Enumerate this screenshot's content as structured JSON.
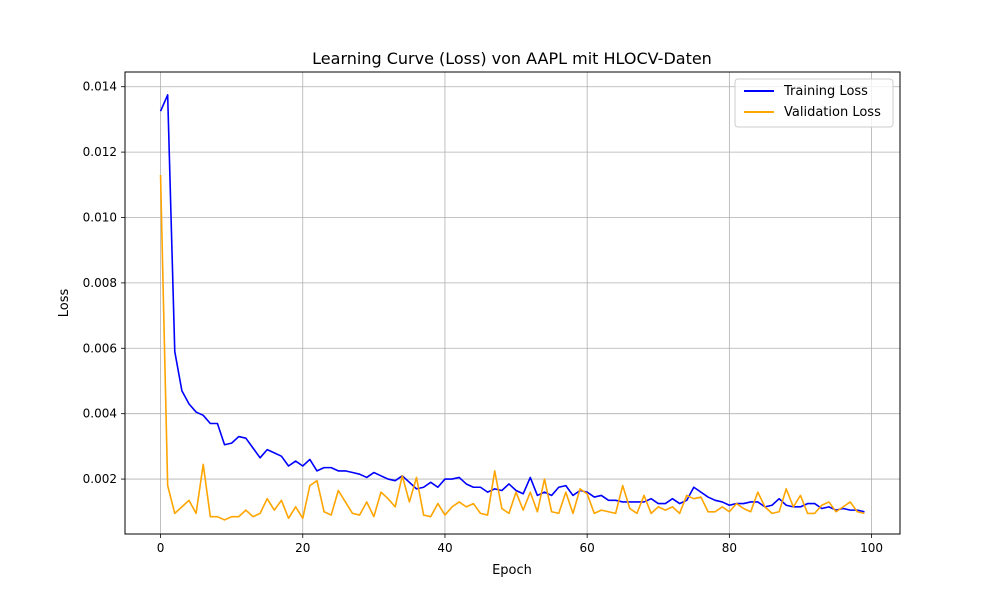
{
  "chart_data": {
    "type": "line",
    "title": "Learning Curve (Loss) von AAPL mit HLOCV-Daten",
    "xlabel": "Epoch",
    "ylabel": "Loss",
    "xlim": [
      -5.0,
      104.0
    ],
    "ylim": [
      0.00032,
      0.01445
    ],
    "xticks": [
      0,
      20,
      40,
      60,
      80,
      100
    ],
    "yticks": [
      0.002,
      0.004,
      0.006,
      0.008,
      0.01,
      0.012,
      0.014
    ],
    "xtick_labels": [
      "0",
      "20",
      "40",
      "60",
      "80",
      "100"
    ],
    "ytick_labels": [
      "0.002",
      "0.004",
      "0.006",
      "0.008",
      "0.010",
      "0.012",
      "0.014"
    ],
    "grid": true,
    "legend_position": "top-right",
    "x": [
      0,
      1,
      2,
      3,
      4,
      5,
      6,
      7,
      8,
      9,
      10,
      11,
      12,
      13,
      14,
      15,
      16,
      17,
      18,
      19,
      20,
      21,
      22,
      23,
      24,
      25,
      26,
      27,
      28,
      29,
      30,
      31,
      32,
      33,
      34,
      35,
      36,
      37,
      38,
      39,
      40,
      41,
      42,
      43,
      44,
      45,
      46,
      47,
      48,
      49,
      50,
      51,
      52,
      53,
      54,
      55,
      56,
      57,
      58,
      59,
      60,
      61,
      62,
      63,
      64,
      65,
      66,
      67,
      68,
      69,
      70,
      71,
      72,
      73,
      74,
      75,
      76,
      77,
      78,
      79,
      80,
      81,
      82,
      83,
      84,
      85,
      86,
      87,
      88,
      89,
      90,
      91,
      92,
      93,
      94,
      95,
      96,
      97,
      98,
      99
    ],
    "series": [
      {
        "name": "Training Loss",
        "color": "#0000ff",
        "values": [
          0.01325,
          0.01375,
          0.0059,
          0.0047,
          0.0043,
          0.00405,
          0.00395,
          0.0037,
          0.0037,
          0.00305,
          0.0031,
          0.0033,
          0.00325,
          0.00295,
          0.00265,
          0.0029,
          0.0028,
          0.0027,
          0.0024,
          0.00255,
          0.0024,
          0.0026,
          0.00225,
          0.00235,
          0.00235,
          0.00225,
          0.00225,
          0.0022,
          0.00215,
          0.00205,
          0.0022,
          0.0021,
          0.002,
          0.00195,
          0.0021,
          0.0019,
          0.0017,
          0.00175,
          0.0019,
          0.00175,
          0.002,
          0.002,
          0.00205,
          0.00185,
          0.00175,
          0.00175,
          0.0016,
          0.0017,
          0.00165,
          0.00185,
          0.00165,
          0.00155,
          0.00205,
          0.0015,
          0.0016,
          0.0015,
          0.00175,
          0.0018,
          0.0015,
          0.00165,
          0.0016,
          0.00145,
          0.0015,
          0.00135,
          0.00135,
          0.0013,
          0.0013,
          0.0013,
          0.0013,
          0.0014,
          0.00125,
          0.00125,
          0.0014,
          0.00125,
          0.00135,
          0.00175,
          0.0016,
          0.00145,
          0.00135,
          0.0013,
          0.0012,
          0.00125,
          0.00125,
          0.0013,
          0.0013,
          0.00115,
          0.0012,
          0.0014,
          0.0012,
          0.00115,
          0.00115,
          0.00125,
          0.00125,
          0.0011,
          0.00115,
          0.00105,
          0.0011,
          0.00105,
          0.00105,
          0.001
        ]
      },
      {
        "name": "Validation Loss",
        "color": "#ffa500",
        "values": [
          0.0113,
          0.0018,
          0.00095,
          0.00115,
          0.00135,
          0.00095,
          0.00245,
          0.00085,
          0.00085,
          0.00075,
          0.00085,
          0.00085,
          0.00105,
          0.00085,
          0.00095,
          0.0014,
          0.00105,
          0.00135,
          0.0008,
          0.00115,
          0.0008,
          0.0018,
          0.00195,
          0.001,
          0.0009,
          0.00165,
          0.0013,
          0.00095,
          0.0009,
          0.0013,
          0.00085,
          0.0016,
          0.0014,
          0.00115,
          0.0021,
          0.0013,
          0.00205,
          0.0009,
          0.00085,
          0.00125,
          0.0009,
          0.00115,
          0.0013,
          0.00115,
          0.00125,
          0.00095,
          0.0009,
          0.00225,
          0.0011,
          0.00095,
          0.0016,
          0.00105,
          0.0016,
          0.001,
          0.002,
          0.001,
          0.00095,
          0.0016,
          0.00095,
          0.0017,
          0.00155,
          0.00095,
          0.00105,
          0.001,
          0.00095,
          0.0018,
          0.0011,
          0.00095,
          0.0015,
          0.00095,
          0.00115,
          0.00105,
          0.00115,
          0.00095,
          0.0015,
          0.0014,
          0.00145,
          0.001,
          0.001,
          0.00115,
          0.001,
          0.00125,
          0.0011,
          0.001,
          0.0016,
          0.00115,
          0.00095,
          0.001,
          0.0017,
          0.00115,
          0.0015,
          0.00095,
          0.00095,
          0.0012,
          0.0013,
          0.001,
          0.00115,
          0.0013,
          0.001,
          0.00095
        ]
      }
    ]
  }
}
